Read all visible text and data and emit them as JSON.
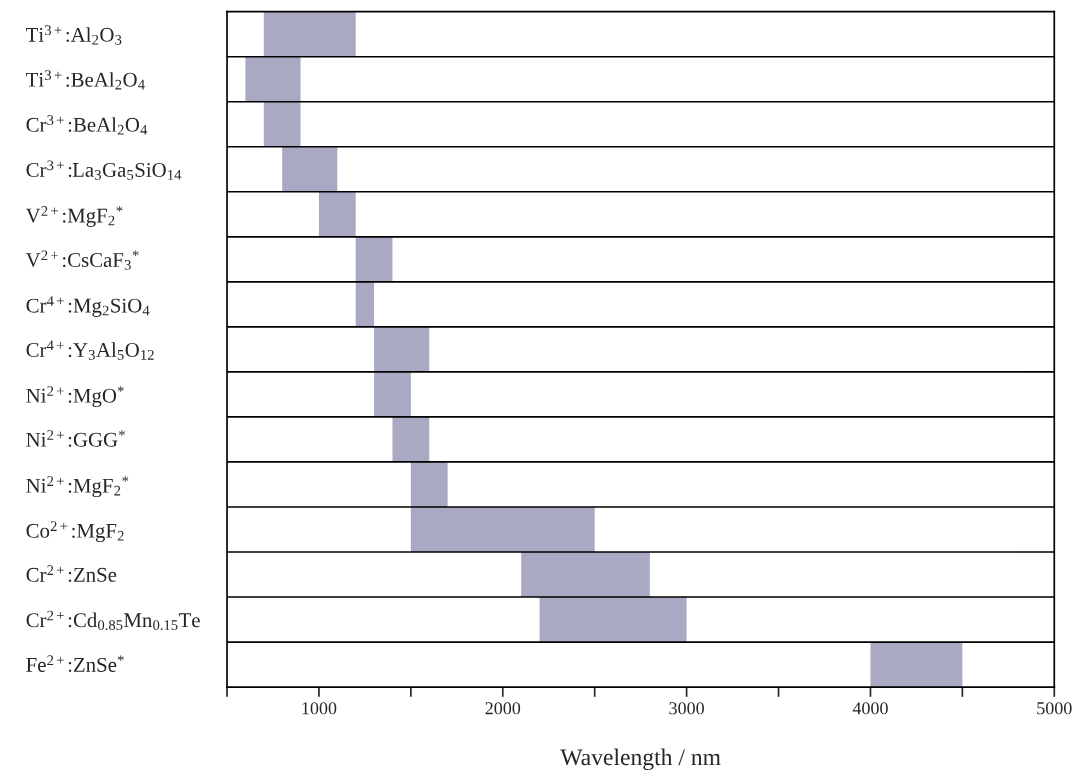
{
  "chart_data": {
    "type": "bar",
    "orientation": "horizontal",
    "xlabel": "Wavelength / nm",
    "categories": [
      "Ti$^{3+}$:Al$_{2}$O$_{3}$",
      "Ti$^{3+}$:BeAl$_{2}$O$_{4}$",
      "Cr$^{3+}$:BeAl$_{2}$O$_{4}$",
      "Cr$^{3+}$:La$_{3}$Ga$_{5}$SiO$_{14}$",
      "V$^{2+}$:MgF$_{2}$$^{*}$",
      "V$^{2+}$:CsCaF$_{3}$$^{*}$",
      "Cr$^{4+}$:Mg$_{2}$SiO$_{4}$",
      "Cr$^{4+}$:Y$_{3}$Al$_{5}$O$_{12}$",
      "Ni$^{2+}$:MgO$^{*}$",
      "Ni$^{2+}$:GGG$^{*}$",
      "Ni$^{2+}$:MgF$_{2}$$^{*}$",
      "Co$^{2+}$:MgF$_{2}$",
      "Cr$^{2+}$:ZnSe",
      "Cr$^{2+}$:Cd$_{0.85}$Mn$_{0.15}$Te",
      "Fe$^{2+}$:ZnSe$^{*}$"
    ],
    "base": [
      700,
      600,
      700,
      800,
      1000,
      1200,
      1200,
      1300,
      1300,
      1400,
      1500,
      1500,
      2100,
      2200,
      4000
    ],
    "values": [
      500,
      300,
      200,
      300,
      200,
      200,
      100,
      300,
      200,
      200,
      200,
      1000,
      700,
      800,
      500
    ],
    "color": "#a9a9c4",
    "xlim": [
      500,
      5000
    ],
    "xticks": [
      {
        "value": 500,
        "label": null
      },
      1000,
      {
        "value": 1500,
        "label": null
      },
      2000,
      {
        "value": 2500,
        "label": null
      },
      3000,
      {
        "value": 3500,
        "label": null
      },
      4000,
      {
        "value": 4500,
        "label": null
      },
      5000
    ],
    "grid": "y"
  }
}
